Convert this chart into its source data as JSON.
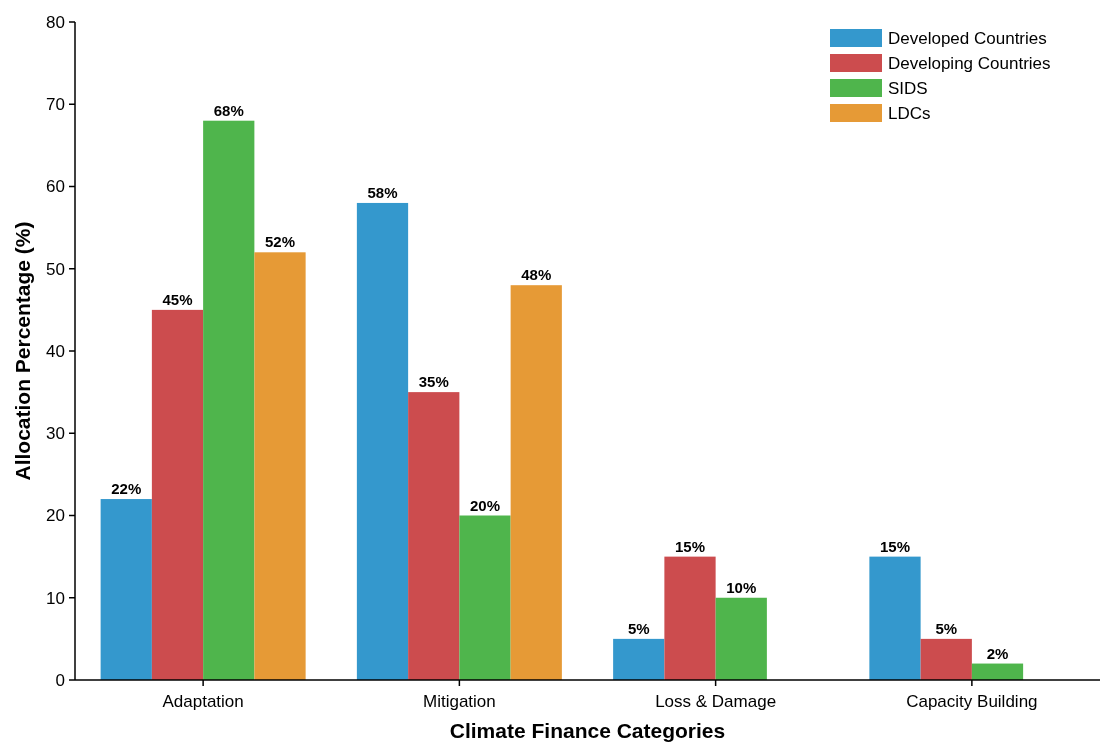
{
  "chart_data": {
    "type": "bar",
    "xlabel": "Climate Finance Categories",
    "ylabel": "Allocation Percentage (%)",
    "categories": [
      "Adaptation",
      "Mitigation",
      "Loss & Damage",
      "Capacity Building"
    ],
    "series": [
      {
        "name": "Developed Countries",
        "color": "#3498cd",
        "values": [
          22,
          58,
          5,
          15
        ],
        "value_labels": [
          "22%",
          "58%",
          "5%",
          "15%"
        ]
      },
      {
        "name": "Developing Countries",
        "color": "#cc4c4e",
        "values": [
          45,
          35,
          15,
          5
        ],
        "value_labels": [
          "45%",
          "35%",
          "15%",
          "5%"
        ]
      },
      {
        "name": "SIDS",
        "color": "#4fb54c",
        "values": [
          68,
          20,
          10,
          2
        ],
        "value_labels": [
          "68%",
          "20%",
          "10%",
          "2%"
        ]
      },
      {
        "name": "LDCs",
        "color": "#e69a36",
        "values": [
          52,
          48,
          null,
          null
        ],
        "value_labels": [
          "52%",
          "48%",
          null,
          null
        ]
      }
    ],
    "ylim": [
      0,
      80
    ],
    "yticks": [
      0,
      10,
      20,
      30,
      40,
      50,
      60,
      70,
      80
    ],
    "grid": false,
    "legend": "top right"
  }
}
